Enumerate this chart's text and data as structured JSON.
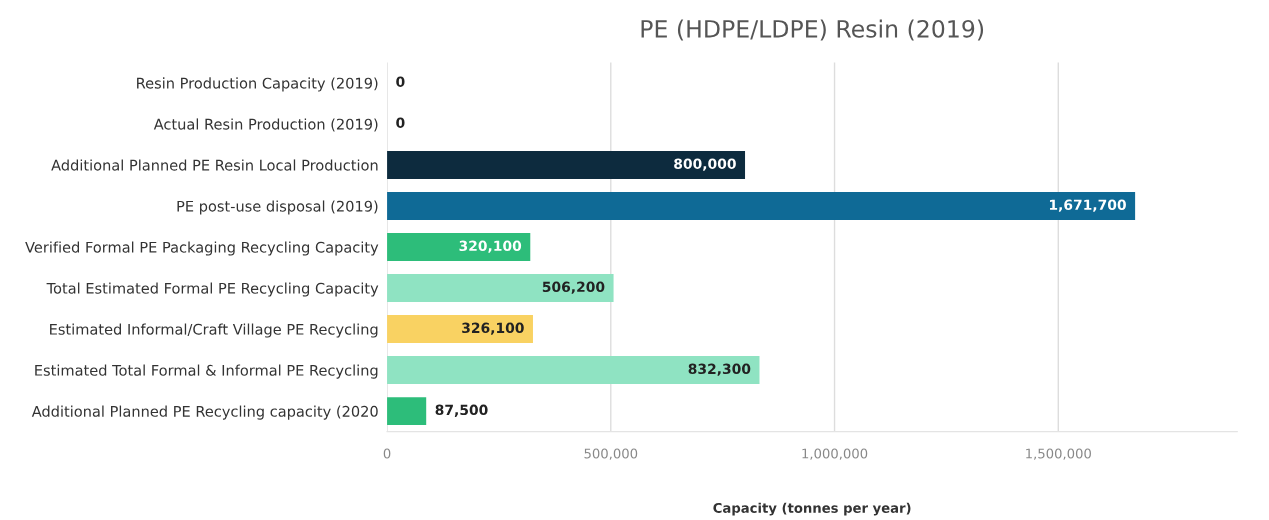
{
  "chart_data": {
    "type": "bar",
    "orientation": "horizontal",
    "title": "PE (HDPE/LDPE) Resin (2019)",
    "xlabel": "Capacity (tonnes per year)",
    "categories": [
      "Resin Production Capacity (2019)",
      "Actual Resin Production (2019)",
      "Additional Planned PE Resin Local Production",
      "PE post-use disposal (2019)",
      "Verified Formal PE Packaging Recycling Capacity",
      "Total Estimated Formal PE Recycling Capacity",
      "Estimated Informal/Craft Village PE Recycling",
      "Estimated Total Formal & Informal PE Recycling",
      "Additional Planned PE Recycling capacity (2020"
    ],
    "values": [
      0,
      0,
      800000,
      1671700,
      320100,
      506200,
      326100,
      832300,
      87500
    ],
    "value_labels": [
      "0",
      "0",
      "800,000",
      "1,671,700",
      "320,100",
      "506,200",
      "326,100",
      "832,300",
      "87,500"
    ],
    "colors": [
      "#0d2b3e",
      "#0d2b3e",
      "#0d2b3e",
      "#0f6a96",
      "#2dbd7a",
      "#8fe3c2",
      "#f9d262",
      "#8fe3c2",
      "#2dbd7a"
    ],
    "xlim": [
      0,
      1900000
    ],
    "xticks": [
      {
        "value": 0,
        "label": "0"
      },
      {
        "value": 500000,
        "label": "500,000"
      },
      {
        "value": 1000000,
        "label": "1,000,000"
      },
      {
        "value": 1500000,
        "label": "1,500,000"
      }
    ],
    "grid": "x"
  }
}
